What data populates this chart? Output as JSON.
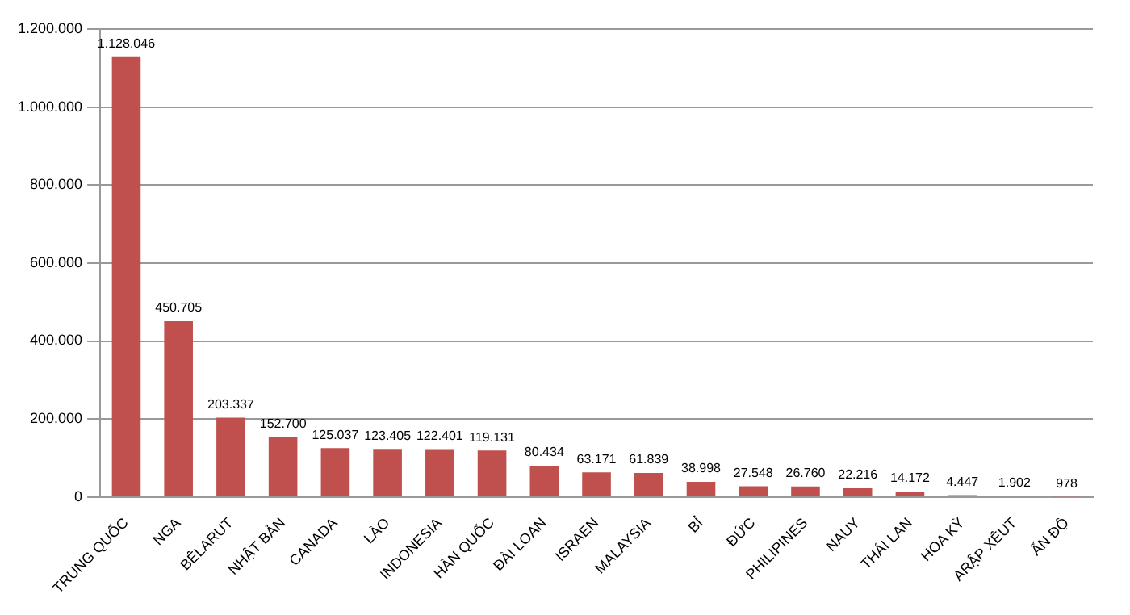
{
  "chart_data": {
    "type": "bar",
    "categories": [
      "TRUNG QUỐC",
      "NGA",
      "BÊLARUT",
      "NHẬT BẢN",
      "CANADA",
      "LÀO",
      "INDONESIA",
      "HÀN QUỐC",
      "ĐÀI LOAN",
      "ISRAEN",
      "MALAYSIA",
      "BỈ",
      "ĐỨC",
      "PHILIPINES",
      "NAUY",
      "THÁI LAN",
      "HOA KỲ",
      "ARẬP XÊUT",
      "ẤN ĐỘ"
    ],
    "values": [
      1128046,
      450705,
      203337,
      152700,
      125037,
      123405,
      122401,
      119131,
      80434,
      63171,
      61839,
      38998,
      27548,
      26760,
      22216,
      14172,
      4447,
      1902,
      978
    ],
    "value_labels": [
      "1.128.046",
      "450.705",
      "203.337",
      "152.700",
      "125.037",
      "123.405",
      "122.401",
      "119.131",
      "80.434",
      "63.171",
      "61.839",
      "38.998",
      "27.548",
      "26.760",
      "22.216",
      "14.172",
      "4.447",
      "1.902",
      "978"
    ],
    "color": "#c0504d",
    "ylim": [
      0,
      1200000
    ],
    "yticks": [
      0,
      {
        "value": 200000,
        "label": "200.000"
      },
      {
        "value": 400000,
        "label": "400.000"
      },
      {
        "value": 600000,
        "label": "600.000"
      },
      {
        "value": 800000,
        "label": "800.000"
      },
      {
        "value": 1000000,
        "label": "1.000.000"
      },
      {
        "value": 1200000,
        "label": "1.200.000"
      }
    ],
    "grid": "y",
    "legend": false
  }
}
